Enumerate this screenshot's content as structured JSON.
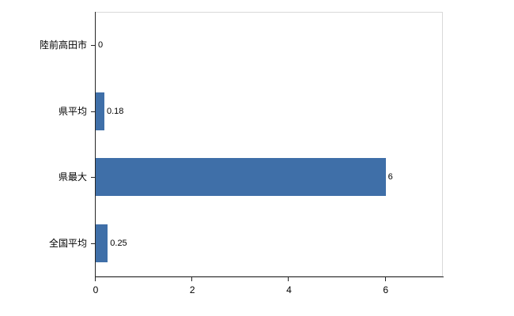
{
  "chart_data": {
    "type": "bar",
    "orientation": "horizontal",
    "title": "",
    "xlabel": "",
    "ylabel": "",
    "categories": [
      "陸前高田市",
      "県平均",
      "県最大",
      "全国平均"
    ],
    "values": [
      0,
      0.18,
      6,
      0.25
    ],
    "value_labels": [
      "0",
      "0.18",
      "6",
      "0.25"
    ],
    "xlim": [
      0,
      7.2
    ],
    "xticks": [
      0,
      2,
      4,
      6
    ],
    "xtick_labels": [
      "0",
      "2",
      "4",
      "6"
    ],
    "bar_color": "#3f6fa8",
    "grid": false,
    "legend": false,
    "background_color": "#ffffff",
    "axis_color": "#262626",
    "plot_border_color": "#d9d9d9"
  }
}
